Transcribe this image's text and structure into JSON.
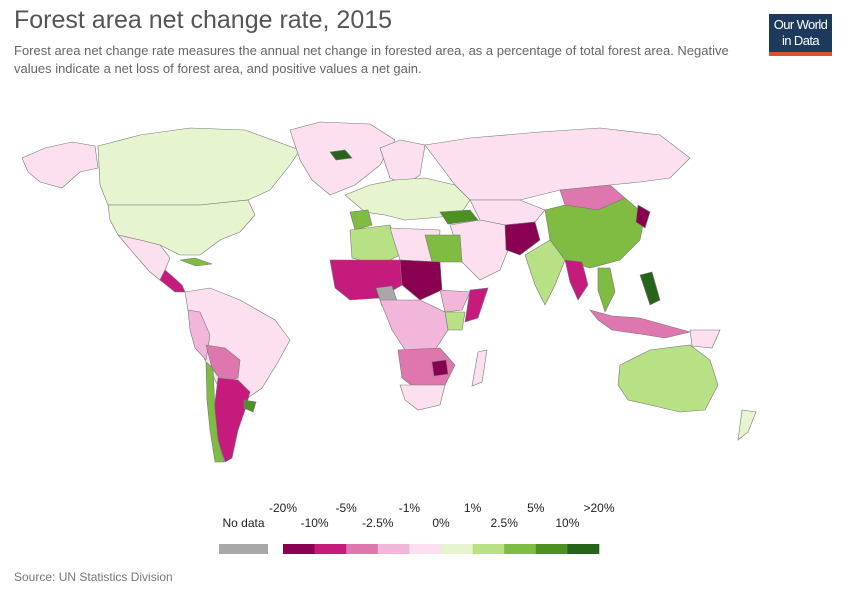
{
  "title": "Forest area net change rate, 2015",
  "subtitle": "Forest area net change rate measures the annual net change in forested area, as a percentage of total forest area. Negative values indicate a net loss of forest area, and positive values a net gain.",
  "logo": {
    "line1": "Our World",
    "line2": "in Data",
    "bg_color": "#1d3a5c",
    "accent_color": "#e0512d"
  },
  "source": "Source: UN Statistics Division",
  "legend": {
    "no_data_label": "No data",
    "no_data_color": "#a8a8a8",
    "colors": [
      "#8a0050",
      "#c51b7d",
      "#de77ae",
      "#f1b6da",
      "#fde0ef",
      "#e6f5d0",
      "#b8e186",
      "#7fbc41",
      "#4d9221",
      "#276419"
    ],
    "upper_ticks": [
      "-20%",
      "-5%",
      "-1%",
      "1%",
      "5%",
      ">20%"
    ],
    "lower_ticks": [
      "-10%",
      "-2.5%",
      "0%",
      "2.5%",
      "10%"
    ]
  },
  "map_colors": {
    "ocean": "#ffffff",
    "border": "#777777",
    "canada": "#e6f5d0",
    "usa": "#e6f5d0",
    "alaska": "#fde0ef",
    "greenland": "#fde0ef",
    "mexico": "#fde0ef",
    "central_america": "#c51b7d",
    "cuba": "#7fbc41",
    "south_america": "#fde0ef",
    "bolivia_paraguay": "#de77ae",
    "peru": "#f1b6da",
    "argentina": "#c51b7d",
    "chile": "#7fbc41",
    "uruguay": "#4d9221",
    "europe": "#e6f5d0",
    "scandinavia": "#fde0ef",
    "iceland": "#276419",
    "spain": "#7fbc41",
    "turkey": "#4d9221",
    "russia": "#fde0ef",
    "mongolia": "#de77ae",
    "kazakhstan": "#fde0ef",
    "china": "#7fbc41",
    "north_korea": "#8a0050",
    "pakistan": "#8a0050",
    "india": "#b8e186",
    "myanmar": "#c51b7d",
    "vietnam": "#7fbc41",
    "middle_east": "#fde0ef",
    "algeria": "#b8e186",
    "libya": "#fde0ef",
    "egypt": "#7fbc41",
    "sahel": "#c51b7d",
    "sudan": "#8a0050",
    "somalia": "#c51b7d",
    "ethiopia": "#f1b6da",
    "kenya": "#b8e186",
    "central_africa": "#f1b6da",
    "southern_africa": "#de77ae",
    "zimbabwe": "#8a0050",
    "south_africa": "#fde0ef",
    "madagascar": "#fde0ef",
    "no_data": "#a8a8a8",
    "indonesia": "#de77ae",
    "philippines": "#276419",
    "australia": "#b8e186",
    "new_zealand": "#e6f5d0",
    "papua": "#fde0ef"
  }
}
